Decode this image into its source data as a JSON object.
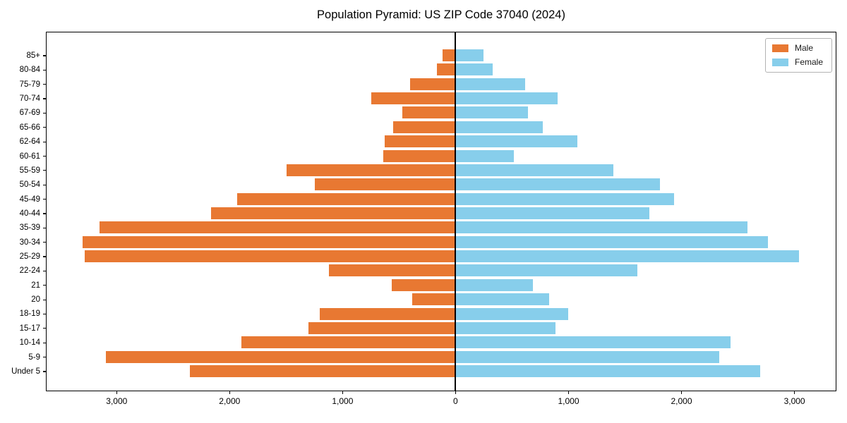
{
  "title": "Population Pyramid: US ZIP Code 37040 (2024)",
  "chart_data": {
    "type": "bar",
    "subtype": "population-pyramid-horizontal",
    "title": "Population Pyramid: US ZIP Code 37040 (2024)",
    "y_axis_order": "bottom-to-top",
    "categories": [
      "Under 5",
      "5-9",
      "10-14",
      "15-17",
      "18-19",
      "20",
      "21",
      "22-24",
      "25-29",
      "30-34",
      "35-39",
      "40-44",
      "45-49",
      "50-54",
      "55-59",
      "60-61",
      "62-64",
      "65-66",
      "67-69",
      "70-74",
      "75-79",
      "80-84",
      "85+"
    ],
    "series": [
      {
        "name": "Male",
        "side": "left",
        "note": "plotted as negative values (left of zero)",
        "color": "#E87832",
        "values": [
          2350,
          3090,
          1890,
          1300,
          1200,
          380,
          565,
          1120,
          3280,
          3300,
          3150,
          2160,
          1930,
          1245,
          1495,
          635,
          625,
          550,
          470,
          745,
          400,
          165,
          110
        ]
      },
      {
        "name": "Female",
        "side": "right",
        "color": "#87CEEB",
        "values": [
          2700,
          2340,
          2440,
          890,
          1000,
          830,
          690,
          1615,
          3045,
          2770,
          2590,
          1720,
          1940,
          1810,
          1400,
          520,
          1080,
          775,
          645,
          905,
          620,
          330,
          250
        ]
      }
    ],
    "xlim": [
      -3617,
      3362
    ],
    "x_ticks": [
      -3000,
      -2000,
      -1000,
      0,
      1000,
      2000,
      3000
    ],
    "x_tick_labels": [
      "3,000",
      "2,000",
      "1,000",
      "0",
      "1,000",
      "2,000",
      "3,000"
    ],
    "xlabel": "",
    "ylabel": "",
    "grid": false,
    "zero_line": true,
    "legend_position": "upper right",
    "legend_labels": [
      "Male",
      "Female"
    ]
  }
}
